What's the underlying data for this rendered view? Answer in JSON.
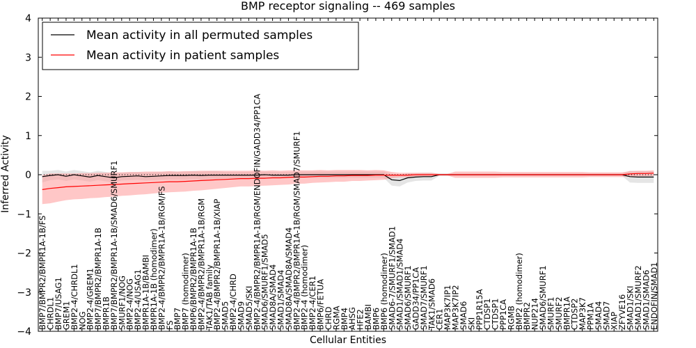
{
  "chart_data": {
    "type": "line",
    "title": "BMP receptor signaling -- 469 samples",
    "xlabel": "Cellular Entities",
    "ylabel": "Inferred Activity",
    "ylim": [
      -4,
      4
    ],
    "yticks": [
      -4,
      -3,
      -2,
      -1,
      0,
      1,
      2,
      3,
      4
    ],
    "legend_position": "top-left",
    "categories": [
      "BMP7/BMPR2/BMPR1A-1B/FS",
      "CHRDL1",
      "BMP7/USAG1",
      "GREM1",
      "BMP2-4/CHRDL1",
      "NOG",
      "BMP2-4/GREM1",
      "BMP7/BMPR2/BMPR1A-1B",
      "BMPR1B",
      "BMP7/BMPR2/BMPR1A-1B/SMAD6/SMURF1",
      "SMURF1/NOG",
      "BMP2-4/NOG",
      "BMP2-4/USAG1",
      "BMPR1A-1B/BAMBI",
      "BMPR1A-1B (homodimer)",
      "BMP2-4/BMPR2/BMPR1A-1B/RGM/FS",
      "FS",
      "BMP7",
      "BMP7 (homodimer)",
      "BMP6/BMPR2/BMPR1A-1B",
      "BMP2-4/BMPR2/BMPR1A-1B/RGM",
      "TAK1/TAB family",
      "BMP2-4/BMPR2/BMPR1A-1B/XIAP",
      "SMAD5",
      "BMP2-4/CHRD",
      "SMAD9",
      "SMAD5/SKI",
      "BMP2-4/BMPR2/BMPR1A-1B/RGM/ENDOFIN/GADD34/PP1CA",
      "SMAD6/SMURF1/SMAD5",
      "SMAD8A/SMAD4",
      "SMAD1/SMAD4",
      "SMAD8A/SMAD8A/SMAD4",
      "BMP2-4/BMPR2/BMPR1A-1B/RGM/SMAD7/SMURF1",
      "BMP2-4 (homodimer)",
      "BMP2-4/CER1",
      "BMP6/FETUA",
      "CHRD",
      "RGMA",
      "BMP4",
      "AHSG",
      "HFE2",
      "BAMBI",
      "BMP6",
      "BMP6 (homodimer)",
      "SMAD6-7/SMURF1/SMAD1",
      "SMAD1/SMAD1/SMAD4",
      "SMAD6/SMURF1",
      "GADD34/PP1CA",
      "SMAD7/SMURF1",
      "TAK1/SMAD6",
      "CER1",
      "MAP3K7IP1",
      "MAP3K7IP2",
      "SMAD6",
      "SKI",
      "PPP1R15A",
      "CTDSP1",
      "CTDSP1",
      "PPP1CA",
      "RGMB",
      "BMP2 (homodimer)",
      "BMPR2",
      "NUP214",
      "SMAD6/SMURF1",
      "SMURF1",
      "SMURF2",
      "BMPR1A",
      "CTDSP2",
      "MAP3K7",
      "PPM1A",
      "SMAD4",
      "SMAD7",
      "XIAP",
      "ZFYVE16",
      "SMAD1/SKI",
      "SMAD1/SMURF2",
      "SMAD1/SMAD6",
      "ENDOFIN/SMAD1"
    ],
    "series": [
      {
        "name": "Mean activity in all permuted samples",
        "color": "#000000",
        "values": [
          -0.05,
          -0.02,
          0.0,
          -0.04,
          0.0,
          -0.03,
          -0.06,
          -0.02,
          -0.05,
          -0.08,
          -0.05,
          -0.04,
          -0.03,
          -0.05,
          -0.04,
          -0.03,
          -0.02,
          -0.02,
          -0.02,
          -0.01,
          -0.02,
          -0.01,
          -0.01,
          -0.01,
          -0.01,
          -0.01,
          -0.01,
          -0.01,
          0.0,
          -0.01,
          -0.01,
          -0.01,
          0.0,
          0.0,
          0.0,
          0.0,
          0.0,
          0.0,
          0.0,
          0.0,
          0.0,
          0.0,
          0.0,
          0.0,
          -0.13,
          -0.15,
          -0.08,
          -0.06,
          -0.05,
          -0.05,
          0.0,
          0.0,
          0.0,
          0.0,
          0.0,
          0.0,
          0.0,
          0.0,
          0.0,
          0.0,
          0.0,
          0.0,
          0.0,
          0.0,
          0.0,
          0.0,
          0.0,
          0.0,
          0.0,
          0.0,
          0.0,
          0.0,
          0.0,
          0.0,
          -0.05,
          -0.06,
          -0.06,
          -0.06
        ],
        "band": [
          0.15,
          0.12,
          0.12,
          0.12,
          0.12,
          0.12,
          0.12,
          0.12,
          0.12,
          0.12,
          0.1,
          0.1,
          0.1,
          0.1,
          0.1,
          0.1,
          0.1,
          0.1,
          0.1,
          0.1,
          0.1,
          0.1,
          0.1,
          0.08,
          0.08,
          0.08,
          0.08,
          0.08,
          0.08,
          0.08,
          0.08,
          0.08,
          0.08,
          0.08,
          0.08,
          0.08,
          0.08,
          0.08,
          0.08,
          0.08,
          0.08,
          0.08,
          0.08,
          0.08,
          0.15,
          0.15,
          0.12,
          0.1,
          0.1,
          0.1,
          0.03,
          0.03,
          0.03,
          0.03,
          0.03,
          0.03,
          0.03,
          0.03,
          0.03,
          0.03,
          0.03,
          0.03,
          0.03,
          0.03,
          0.03,
          0.03,
          0.03,
          0.03,
          0.03,
          0.03,
          0.03,
          0.03,
          0.03,
          0.03,
          0.15,
          0.15,
          0.15,
          0.15
        ]
      },
      {
        "name": "Mean activity in patient samples",
        "color": "#ff0000",
        "values": [
          -0.38,
          -0.35,
          -0.33,
          -0.31,
          -0.3,
          -0.29,
          -0.28,
          -0.27,
          -0.26,
          -0.25,
          -0.24,
          -0.23,
          -0.22,
          -0.21,
          -0.2,
          -0.19,
          -0.18,
          -0.18,
          -0.17,
          -0.16,
          -0.15,
          -0.14,
          -0.13,
          -0.12,
          -0.11,
          -0.1,
          -0.1,
          -0.09,
          -0.09,
          -0.08,
          -0.08,
          -0.07,
          -0.06,
          -0.06,
          -0.05,
          -0.04,
          -0.04,
          -0.03,
          -0.03,
          -0.02,
          -0.02,
          -0.02,
          -0.01,
          -0.01,
          -0.01,
          -0.01,
          -0.01,
          0.0,
          0.0,
          0.0,
          0.0,
          0.0,
          0.0,
          0.0,
          0.0,
          0.0,
          0.0,
          0.0,
          0.0,
          0.0,
          0.0,
          0.0,
          0.0,
          0.0,
          0.0,
          0.0,
          0.0,
          0.0,
          0.0,
          0.0,
          0.0,
          0.0,
          0.0,
          0.0,
          0.02,
          0.03,
          0.03,
          0.04
        ],
        "band": [
          0.37,
          0.38,
          0.36,
          0.34,
          0.33,
          0.33,
          0.32,
          0.32,
          0.31,
          0.31,
          0.3,
          0.3,
          0.29,
          0.29,
          0.28,
          0.27,
          0.27,
          0.26,
          0.26,
          0.25,
          0.25,
          0.24,
          0.23,
          0.22,
          0.21,
          0.2,
          0.2,
          0.2,
          0.19,
          0.19,
          0.18,
          0.18,
          0.17,
          0.17,
          0.16,
          0.16,
          0.15,
          0.15,
          0.15,
          0.14,
          0.14,
          0.13,
          0.13,
          0.12,
          0.08,
          0.06,
          0.06,
          0.05,
          0.05,
          0.05,
          0.02,
          0.02,
          0.08,
          0.08,
          0.08,
          0.08,
          0.08,
          0.08,
          0.07,
          0.07,
          0.07,
          0.07,
          0.07,
          0.07,
          0.07,
          0.07,
          0.07,
          0.07,
          0.07,
          0.06,
          0.06,
          0.06,
          0.06,
          0.06,
          0.07,
          0.07,
          0.07,
          0.07
        ]
      }
    ],
    "reference_line": {
      "y": 0,
      "style": "dotted"
    }
  },
  "colors": {
    "permuted_band": "#d3d3d3",
    "patient_band": "#ff9999"
  }
}
